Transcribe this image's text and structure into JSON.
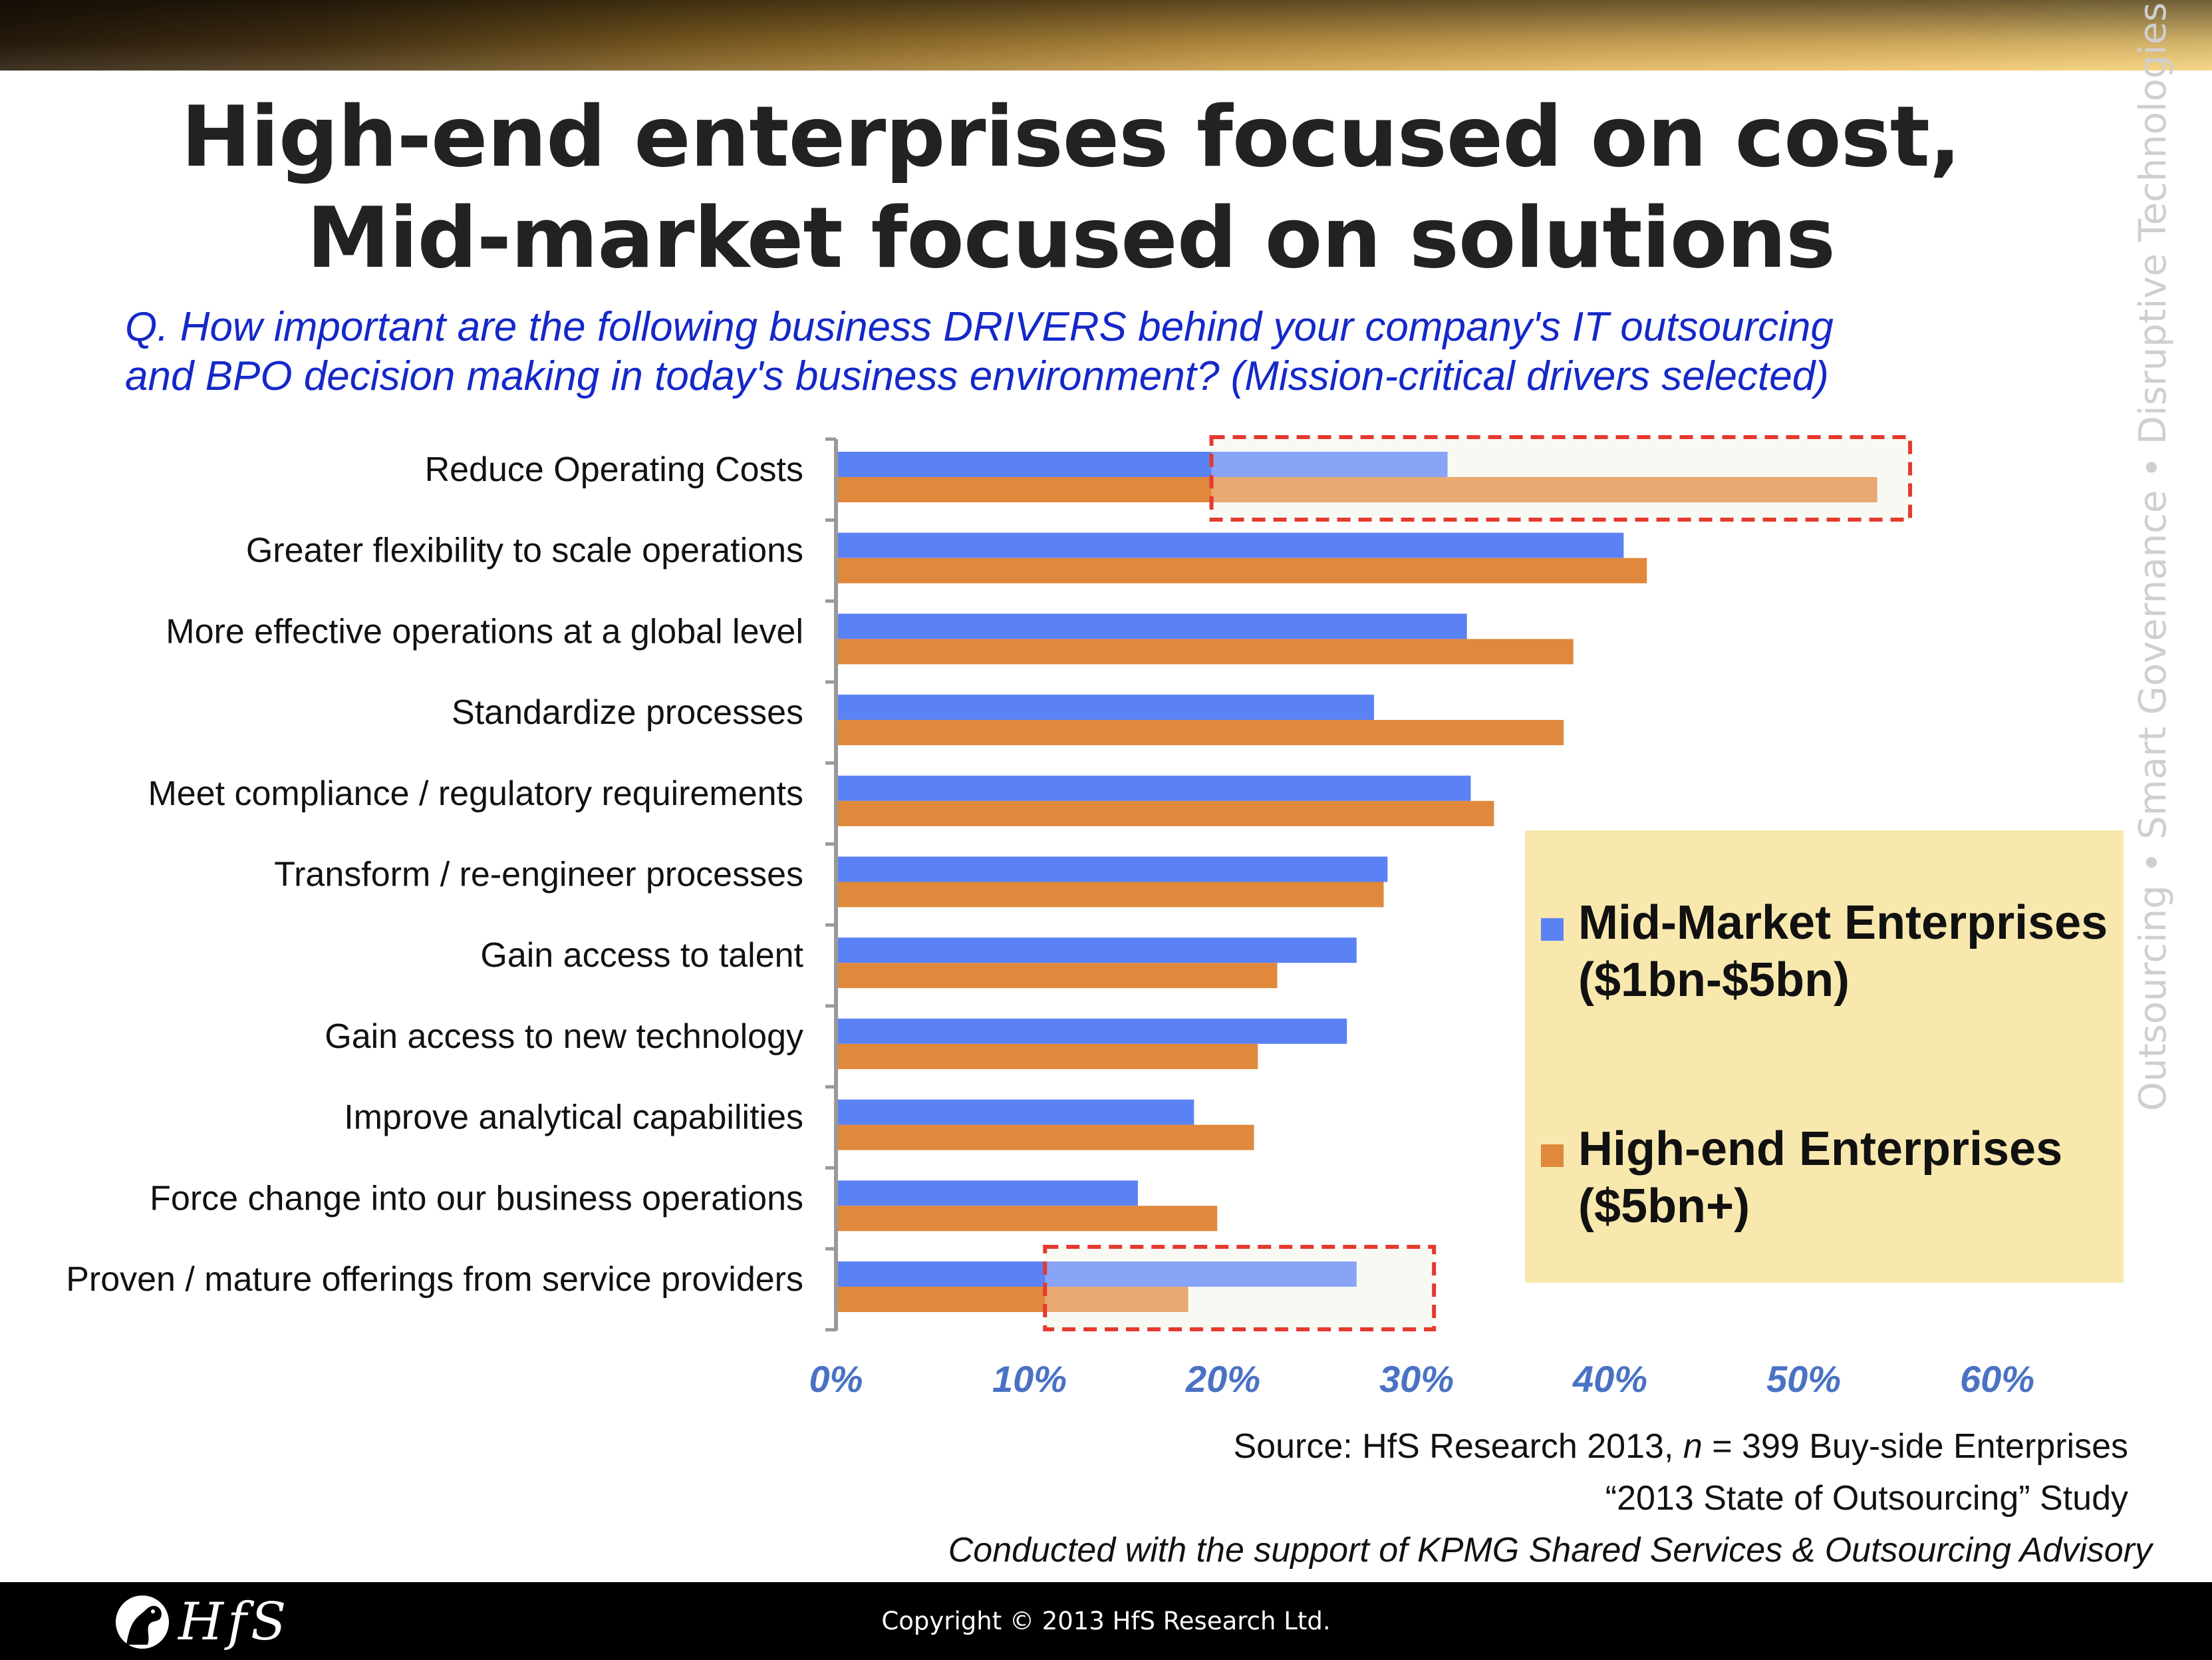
{
  "title": {
    "line1": "High-end enterprises focused on cost,",
    "line2": "Mid-market focused on solutions"
  },
  "question": {
    "line1": "Q. How important are the following business DRIVERS behind your company's IT outsourcing",
    "line2": "and BPO decision making in today's business environment? (Mission-critical drivers selected)"
  },
  "side_text": "Outsourcing • Smart Governance • Disruptive Technologies",
  "legend": {
    "mid": {
      "line1": "Mid-Market Enterprises",
      "line2": "($1bn-$5bn)",
      "color": "#5b82f4"
    },
    "high": {
      "line1": "High-end Enterprises",
      "line2": "($5bn+)",
      "color": "#e0883c"
    }
  },
  "source": {
    "prefix": "Source: HfS Research 2013, ",
    "n": "n",
    "suffix": " = 399 Buy-side Enterprises",
    "study": "“2013 State of Outsourcing” Study",
    "support": "Conducted with the support of KPMG Shared Services & Outsourcing Advisory"
  },
  "footer": {
    "logo_text": "HfS",
    "copyright": "Copyright © 2013 HfS Research Ltd."
  },
  "chart_data": {
    "type": "bar",
    "orientation": "horizontal",
    "categories": [
      "Reduce Operating Costs",
      "Greater flexibility to scale operations",
      "More effective operations at a global level",
      "Standardize processes",
      "Meet compliance / regulatory requirements",
      "Transform / re-engineer processes",
      "Gain access to talent",
      "Gain access to new technology",
      "Improve analytical capabilities",
      "Force change into our business operations",
      "Proven / mature offerings from service providers"
    ],
    "series": [
      {
        "name": "Mid-Market Enterprises ($1bn-$5bn)",
        "color": "#5b82f4",
        "values": [
          31.6,
          40.7,
          32.6,
          27.8,
          32.8,
          28.5,
          26.9,
          26.4,
          18.5,
          15.6,
          26.9
        ]
      },
      {
        "name": "High-end Enterprises ($5bn+)",
        "color": "#e0883c",
        "values": [
          53.8,
          41.9,
          38.1,
          37.6,
          34.0,
          28.3,
          22.8,
          21.8,
          21.6,
          19.7,
          18.2
        ]
      }
    ],
    "x_ticks": [
      "0%",
      "10%",
      "20%",
      "30%",
      "40%",
      "50%",
      "60%"
    ],
    "xlim": [
      0,
      60
    ],
    "highlights": [
      {
        "category": "Reduce Operating Costs",
        "x_range": [
          19.4,
          55.5
        ]
      },
      {
        "category": "Proven / mature offerings from service providers",
        "x_range": [
          10.8,
          30.9
        ]
      }
    ],
    "tick_color": "#4a72c4",
    "highlight_color": "#e53a2e",
    "highlight_fill": "#f5f7ee",
    "grid": false,
    "legend_position": "right"
  }
}
